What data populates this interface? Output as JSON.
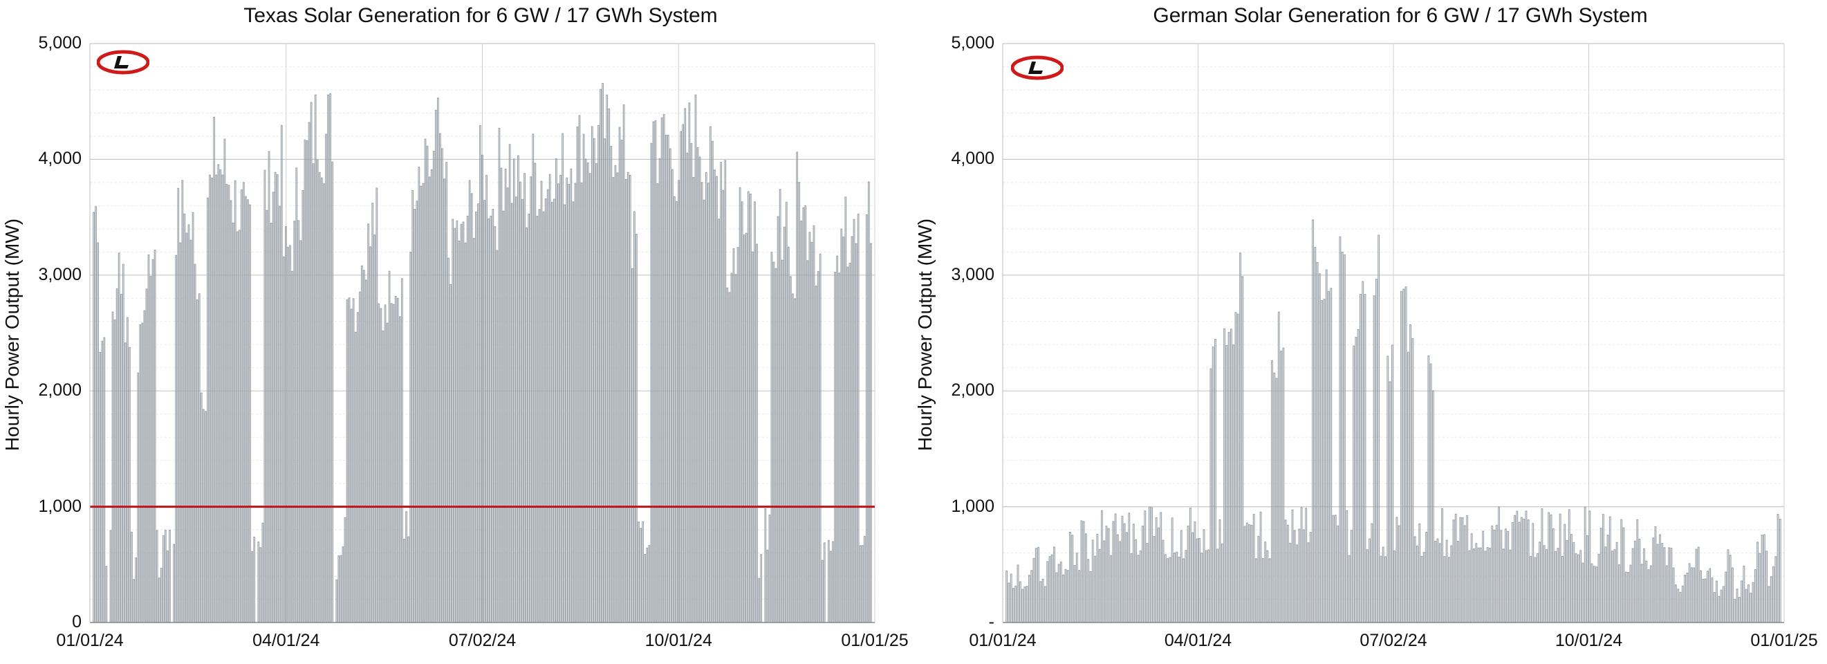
{
  "chart_data": [
    {
      "type": "bar",
      "title": "Texas Solar Generation for 6 GW / 17 GWh System",
      "xlabel": "",
      "ylabel": "Hourly Power Output (MW)",
      "ylim": [
        0,
        5000
      ],
      "xlim": [
        "01/01/24",
        "01/01/25"
      ],
      "x_tick_labels": [
        "01/01/24",
        "04/01/24",
        "07/02/24",
        "10/01/24",
        "01/01/25"
      ],
      "y_tick_labels": [
        "0",
        "1,000",
        "2,000",
        "3,000",
        "4,000",
        "5,000"
      ],
      "grid": true,
      "reference_line": {
        "y": 1000,
        "color": "#c0121a"
      },
      "series_color": "#9aa1a8",
      "daily_peak_mw": [
        3900,
        2700,
        0,
        3000,
        3400,
        2800,
        0,
        2600,
        3200,
        3500,
        0,
        1000,
        0,
        3800,
        3900,
        3700,
        3300,
        2200,
        4100,
        4400,
        4300,
        4200,
        4000,
        3900,
        3700,
        0,
        1000,
        4100,
        4200,
        4300,
        3500,
        3600,
        4000,
        4400,
        4600,
        4700,
        4600,
        4700,
        0,
        1000,
        3300,
        3000,
        3400,
        3600,
        3800,
        2900,
        3100,
        3300,
        3200,
        1000,
        3800,
        4000,
        4200,
        4300,
        4600,
        4100,
        3500,
        3700,
        3600,
        3900,
        4000,
        4300,
        4100,
        3900,
        4300,
        4400,
        4200,
        4100,
        4000,
        4300,
        4200,
        4100,
        4400,
        4200,
        4300,
        4400,
        4500,
        4600,
        4500,
        4600,
        4700,
        4600,
        4600,
        4500,
        4400,
        3600,
        1000,
        0,
        4700,
        4500,
        4600,
        4400,
        4300,
        4500,
        4600,
        4650,
        4400,
        4300,
        4200,
        4400,
        3300,
        3500,
        4000,
        4100,
        3900,
        0,
        1000,
        3200,
        3800,
        3900,
        3200,
        4100,
        3800,
        3900,
        3500,
        0,
        1000,
        3600,
        3800,
        3400,
        3700,
        1000,
        3900
      ],
      "low_day_values_mw": [
        950,
        600,
        800,
        1000,
        0,
        700,
        900,
        0,
        1000,
        500
      ]
    },
    {
      "type": "bar",
      "title": "German Solar Generation for 6 GW / 17 GWh System",
      "xlabel": "",
      "ylabel": "Hourly Power Output (MW)",
      "ylim": [
        0,
        5000
      ],
      "xlim": [
        "01/01/24",
        "01/01/25"
      ],
      "x_tick_labels": [
        "01/01/24",
        "04/01/24",
        "07/02/24",
        "10/01/24",
        "01/01/25"
      ],
      "y_tick_labels": [
        "-",
        "1,000",
        "2,000",
        "3,000",
        "4,000",
        "5,000"
      ],
      "grid": true,
      "series_color": "#9aa1a8",
      "daily_peak_mw": [
        600,
        500,
        450,
        550,
        1000,
        400,
        650,
        700,
        550,
        800,
        600,
        900,
        750,
        850,
        1000,
        950,
        1000,
        1000,
        1000,
        1000,
        1000,
        1000,
        1000,
        1000,
        1000,
        1000,
        1000,
        1000,
        1000,
        1000,
        2450,
        1000,
        2700,
        2900,
        3200,
        1000,
        1000,
        1000,
        1000,
        2300,
        2700,
        1000,
        1000,
        1000,
        1000,
        3580,
        3100,
        3200,
        1000,
        3400,
        1000,
        2900,
        2950,
        1000,
        3400,
        1000,
        2500,
        1000,
        3120,
        2700,
        1000,
        1000,
        2330,
        1000,
        1000,
        1000,
        1000,
        1000,
        1000,
        1000,
        1000,
        1000,
        1000,
        1000,
        1000,
        1000,
        1000,
        1000,
        1000,
        1000,
        1000,
        1000,
        1000,
        950,
        900,
        1000,
        800,
        950,
        1000,
        700,
        900,
        600,
        1000,
        800,
        700,
        900,
        1000,
        650,
        500,
        450,
        600,
        800,
        550,
        700,
        400,
        500,
        650,
        300,
        500,
        400,
        700,
        900,
        500,
        950
      ]
    }
  ]
}
